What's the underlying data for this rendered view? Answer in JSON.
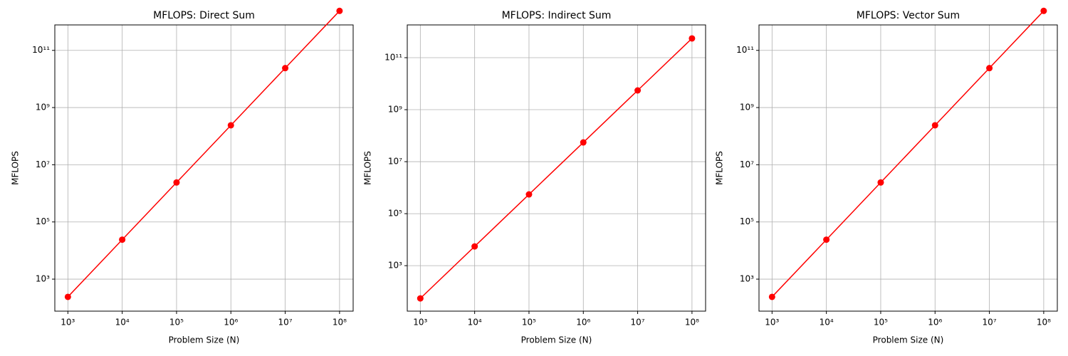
{
  "chart_data": [
    {
      "type": "line",
      "title": "MFLOPS: Direct Sum",
      "x_label": "Problem Size (N)",
      "y_label": "MFLOPS",
      "x": [
        1000,
        10000,
        100000,
        1000000,
        10000000,
        100000000
      ],
      "series": [
        {
          "color": "#ff0000",
          "values": [
            240,
            24000,
            2400000,
            240000000,
            24000000000,
            2400000000000
          ]
        }
      ],
      "log_x": true,
      "log_y": true,
      "grid": true,
      "xlim": [
        575,
        178000000
      ],
      "ylim": [
        76,
        776000000000
      ],
      "xticks": [
        {
          "value": 1000,
          "label": "10³"
        },
        {
          "value": 10000,
          "label": "10⁴"
        },
        {
          "value": 100000,
          "label": "10⁵"
        },
        {
          "value": 1000000,
          "label": "10⁶"
        },
        {
          "value": 10000000,
          "label": "10⁷"
        },
        {
          "value": 100000000,
          "label": "10⁸"
        }
      ],
      "yticks": [
        {
          "value": 1000,
          "label": "10³"
        },
        {
          "value": 100000,
          "label": "10⁵"
        },
        {
          "value": 10000000,
          "label": "10⁷"
        },
        {
          "value": 1000000000,
          "label": "10⁹"
        },
        {
          "value": 100000000000,
          "label": "10¹¹"
        }
      ]
    },
    {
      "type": "line",
      "title": "MFLOPS: Indirect Sum",
      "x_label": "Problem Size (N)",
      "y_label": "MFLOPS",
      "x": [
        1000,
        10000,
        100000,
        1000000,
        10000000,
        100000000
      ],
      "series": [
        {
          "color": "#ff0000",
          "values": [
            55,
            5500,
            550000,
            55000000,
            5500000000,
            550000000000
          ]
        }
      ],
      "log_x": true,
      "log_y": true,
      "grid": true,
      "xlim": [
        575,
        178000000
      ],
      "ylim": [
        17.8,
        1820000000000
      ],
      "xticks": [
        {
          "value": 1000,
          "label": "10³"
        },
        {
          "value": 10000,
          "label": "10⁴"
        },
        {
          "value": 100000,
          "label": "10⁵"
        },
        {
          "value": 1000000,
          "label": "10⁶"
        },
        {
          "value": 10000000,
          "label": "10⁷"
        },
        {
          "value": 100000000,
          "label": "10⁸"
        }
      ],
      "yticks": [
        {
          "value": 1000,
          "label": "10³"
        },
        {
          "value": 100000,
          "label": "10⁵"
        },
        {
          "value": 10000000,
          "label": "10⁷"
        },
        {
          "value": 1000000000,
          "label": "10⁹"
        },
        {
          "value": 100000000000,
          "label": "10¹¹"
        }
      ]
    },
    {
      "type": "line",
      "title": "MFLOPS: Vector Sum",
      "x_label": "Problem Size (N)",
      "y_label": "MFLOPS",
      "x": [
        1000,
        10000,
        100000,
        1000000,
        10000000,
        100000000
      ],
      "series": [
        {
          "color": "#ff0000",
          "values": [
            240,
            24000,
            2400000,
            240000000,
            24000000000,
            2400000000000
          ]
        }
      ],
      "log_x": true,
      "log_y": true,
      "grid": true,
      "xlim": [
        575,
        178000000
      ],
      "ylim": [
        76,
        776000000000
      ],
      "xticks": [
        {
          "value": 1000,
          "label": "10³"
        },
        {
          "value": 10000,
          "label": "10⁴"
        },
        {
          "value": 100000,
          "label": "10⁵"
        },
        {
          "value": 1000000,
          "label": "10⁶"
        },
        {
          "value": 10000000,
          "label": "10⁷"
        },
        {
          "value": 100000000,
          "label": "10⁸"
        }
      ],
      "yticks": [
        {
          "value": 1000,
          "label": "10³"
        },
        {
          "value": 100000,
          "label": "10⁵"
        },
        {
          "value": 10000000,
          "label": "10⁷"
        },
        {
          "value": 1000000000,
          "label": "10⁹"
        },
        {
          "value": 100000000000,
          "label": "10¹¹"
        }
      ]
    }
  ]
}
